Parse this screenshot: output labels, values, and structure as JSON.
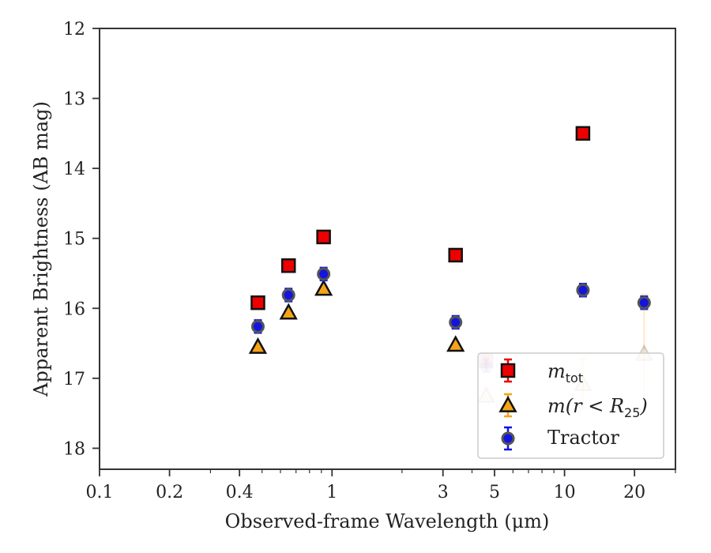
{
  "chart_data": {
    "type": "scatter",
    "xlabel": "Observed-frame Wavelength (μm)",
    "ylabel": "Apparent Brightness (AB mag)",
    "xscale": "log",
    "xlim": [
      0.1,
      30
    ],
    "ylim": [
      18.3,
      12
    ],
    "y_inverted": true,
    "x_ticks": [
      {
        "value": 0.1,
        "label": "0.1"
      },
      {
        "value": 0.2,
        "label": "0.2"
      },
      {
        "value": 0.4,
        "label": "0.4"
      },
      {
        "value": 1,
        "label": "1"
      },
      {
        "value": 3,
        "label": "3"
      },
      {
        "value": 5,
        "label": "5"
      },
      {
        "value": 10,
        "label": "10"
      },
      {
        "value": 20,
        "label": "20"
      }
    ],
    "y_ticks": [
      {
        "value": 12,
        "label": "12"
      },
      {
        "value": 13,
        "label": "13"
      },
      {
        "value": 14,
        "label": "14"
      },
      {
        "value": 15,
        "label": "15"
      },
      {
        "value": 16,
        "label": "16"
      },
      {
        "value": 17,
        "label": "17"
      },
      {
        "value": 18,
        "label": "18"
      }
    ],
    "legend_position": "bottom-right",
    "series": [
      {
        "key": "mtot",
        "marker": "square",
        "color": "#ee0000",
        "points": [
          {
            "x": 0.48,
            "y": 15.92,
            "err": 0.05
          },
          {
            "x": 0.65,
            "y": 15.39,
            "err": 0.05
          },
          {
            "x": 0.92,
            "y": 14.98,
            "err": 0.05
          },
          {
            "x": 3.4,
            "y": 15.24,
            "err": 0.05
          },
          {
            "x": 12.0,
            "y": 13.5,
            "err": 0.05
          }
        ],
        "faded_points": [
          {
            "x": 4.6,
            "y": 16.75,
            "err": 0.05
          }
        ]
      },
      {
        "key": "mr25",
        "marker": "triangle",
        "color": "#f5a418",
        "points": [
          {
            "x": 0.48,
            "y": 16.55,
            "err": 0.0
          },
          {
            "x": 0.65,
            "y": 16.06,
            "err": 0.0
          },
          {
            "x": 0.92,
            "y": 15.72,
            "err": 0.0
          },
          {
            "x": 3.4,
            "y": 16.52,
            "err": 0.0
          }
        ],
        "faded_points": [
          {
            "x": 4.6,
            "y": 17.25,
            "err": 0.0
          },
          {
            "x": 12.0,
            "y": 17.08,
            "err": 0.35
          },
          {
            "x": 22.0,
            "y": 16.65,
            "err": 0.85
          }
        ]
      },
      {
        "name": "Tractor",
        "key": "tractor",
        "marker": "circle",
        "color": "#1414e0",
        "points": [
          {
            "x": 0.48,
            "y": 16.26,
            "err": 0.09
          },
          {
            "x": 0.65,
            "y": 15.81,
            "err": 0.09
          },
          {
            "x": 0.92,
            "y": 15.51,
            "err": 0.09
          },
          {
            "x": 3.4,
            "y": 16.2,
            "err": 0.09
          },
          {
            "x": 12.0,
            "y": 15.74,
            "err": 0.09
          },
          {
            "x": 22.0,
            "y": 15.92,
            "err": 0.09
          }
        ],
        "faded_points": [
          {
            "x": 4.6,
            "y": 16.82,
            "err": 0.09
          }
        ]
      }
    ],
    "legend": {
      "mtot": {
        "base": "m",
        "sub": "tot"
      },
      "mr25": {
        "base": "m",
        "mid": "(r < R",
        "sub": "25",
        "end": ")"
      },
      "tractor": {
        "label": "Tractor"
      }
    }
  }
}
